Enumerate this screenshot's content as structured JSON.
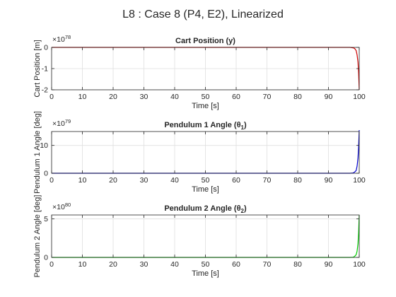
{
  "figure": {
    "title": "L8 : Case 8 (P4, E2), Linearized"
  },
  "chart_data": [
    {
      "type": "line",
      "title": "Cart Position (y)",
      "title_sub": "",
      "xlabel": "Time [s]",
      "ylabel": "Cart Position [m]",
      "exponent_base": "×10",
      "exponent_power": "78",
      "xlim": [
        0,
        100
      ],
      "ylim": [
        -2,
        0
      ],
      "xticks": [
        0,
        10,
        20,
        30,
        40,
        50,
        60,
        70,
        80,
        90,
        100
      ],
      "yticks": [
        -2,
        -1,
        0
      ],
      "grid": true,
      "color": "#cc0000",
      "series": [
        {
          "x": [
            0,
            97,
            98,
            98.5,
            99,
            99.3,
            99.6,
            99.8,
            100
          ],
          "y": [
            0,
            0,
            -0.02,
            -0.05,
            -0.15,
            -0.35,
            -0.7,
            -1.2,
            -2.0
          ]
        }
      ]
    },
    {
      "type": "line",
      "title": "Pendulum 1 Angle (θ",
      "title_sub": "1",
      "title_end": ")",
      "xlabel": "Time [s]",
      "ylabel": "Pendulum 1 Angle [deg]",
      "exponent_base": "×10",
      "exponent_power": "79",
      "xlim": [
        0,
        100
      ],
      "ylim": [
        0,
        15
      ],
      "xticks": [
        0,
        10,
        20,
        30,
        40,
        50,
        60,
        70,
        80,
        90,
        100
      ],
      "yticks": [
        0,
        10
      ],
      "grid": true,
      "color": "#0000cc",
      "series": [
        {
          "x": [
            0,
            97,
            98,
            98.5,
            99,
            99.3,
            99.6,
            99.8,
            100
          ],
          "y": [
            0,
            0,
            0.1,
            0.4,
            1.0,
            2.5,
            5.5,
            9.5,
            15.5
          ]
        }
      ]
    },
    {
      "type": "line",
      "title": "Pendulum 2 Angle (θ",
      "title_sub": "2",
      "title_end": ")",
      "xlabel": "Time [s]",
      "ylabel": "Pendulum 2 Angle [deg]",
      "exponent_base": "×10",
      "exponent_power": "80",
      "xlim": [
        0,
        100
      ],
      "ylim": [
        0,
        5.5
      ],
      "xticks": [
        0,
        10,
        20,
        30,
        40,
        50,
        60,
        70,
        80,
        90,
        100
      ],
      "yticks": [
        0,
        5
      ],
      "grid": true,
      "color": "#00cc00",
      "series": [
        {
          "x": [
            0,
            97,
            98,
            98.5,
            99,
            99.3,
            99.6,
            99.8,
            100
          ],
          "y": [
            0,
            0,
            0.03,
            0.12,
            0.35,
            0.8,
            1.8,
            3.2,
            5.5
          ]
        }
      ]
    }
  ]
}
